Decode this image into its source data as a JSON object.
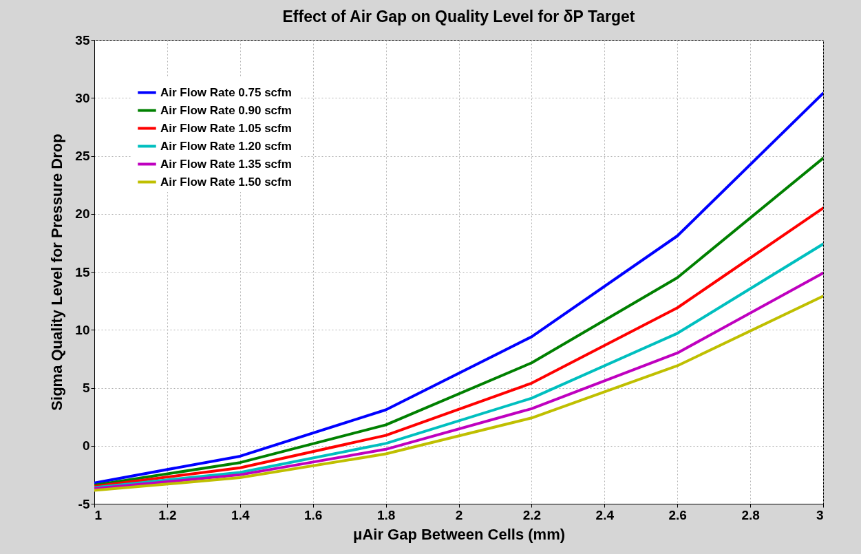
{
  "chart_data": {
    "type": "line",
    "title": "Effect of Air Gap on Quality Level for δP Target",
    "xlabel": "μAir Gap Between Cells (mm)",
    "ylabel": "Sigma Quality Level for Pressure Drop",
    "x": [
      1,
      1.4,
      1.8,
      2.2,
      2.6,
      3
    ],
    "series": [
      {
        "name": "Air Flow Rate 0.75 scfm",
        "color": "#0000ff",
        "values": [
          -3.2,
          -0.9,
          3.1,
          9.4,
          18.1,
          30.4
        ]
      },
      {
        "name": "Air Flow Rate 0.90 scfm",
        "color": "#008000",
        "values": [
          -3.4,
          -1.45,
          1.8,
          7.15,
          14.5,
          24.8
        ]
      },
      {
        "name": "Air Flow Rate 1.05 scfm",
        "color": "#ff0000",
        "values": [
          -3.5,
          -1.9,
          0.9,
          5.4,
          11.9,
          20.5
        ]
      },
      {
        "name": "Air Flow Rate 1.20 scfm",
        "color": "#00bfbf",
        "values": [
          -3.6,
          -2.3,
          0.2,
          4.1,
          9.7,
          17.4
        ]
      },
      {
        "name": "Air Flow Rate 1.35  scfm",
        "color": "#bf00bf",
        "values": [
          -3.7,
          -2.5,
          -0.3,
          3.2,
          8.0,
          14.9
        ]
      },
      {
        "name": "Air Flow Rate 1.50 scfm",
        "color": "#bfbf00",
        "values": [
          -3.85,
          -2.75,
          -0.7,
          2.4,
          6.9,
          12.9
        ]
      }
    ],
    "xlim": [
      1,
      3
    ],
    "xticks": [
      1,
      1.2,
      1.4,
      1.6,
      1.8,
      2,
      2.2,
      2.4,
      2.6,
      2.8,
      3
    ],
    "ylim": [
      -5,
      35
    ],
    "yticks": [
      -5,
      0,
      5,
      10,
      15,
      20,
      25,
      30,
      35
    ],
    "grid": true,
    "legend": "top left"
  }
}
